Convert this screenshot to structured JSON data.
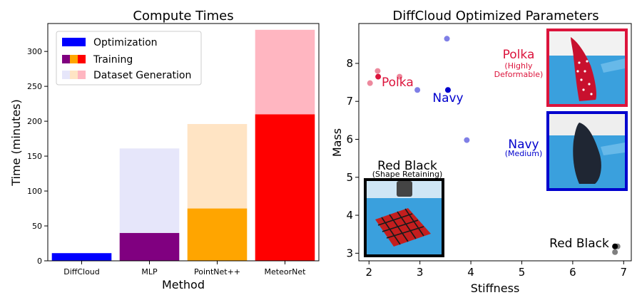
{
  "chart_data": [
    {
      "type": "bar",
      "stacked": true,
      "title": "Compute Times",
      "xlabel": "Method",
      "ylabel": "Time (minutes)",
      "ylim": [
        0,
        340
      ],
      "yticks": [
        0,
        50,
        100,
        150,
        200,
        250,
        300
      ],
      "categories": [
        "DiffCloud",
        "MLP",
        "PointNet++",
        "MeteorNet"
      ],
      "series": [
        {
          "name": "Optimization",
          "values": [
            11,
            0,
            0,
            0
          ],
          "colors": [
            "#0000ff",
            "#0000ff",
            "#0000ff",
            "#0000ff"
          ]
        },
        {
          "name": "Training",
          "values": [
            0,
            40,
            75,
            210
          ],
          "colors": [
            "#800080",
            "#800080",
            "#ffa500",
            "#ff0000"
          ]
        },
        {
          "name": "Dataset Generation",
          "values": [
            0,
            121,
            121,
            121
          ],
          "colors": [
            "#e6e6fa",
            "#e6e6fa",
            "#ffe4c4",
            "#ffb6c1"
          ]
        }
      ],
      "legend_position": "top-left",
      "grid": false
    },
    {
      "type": "scatter",
      "title": "DiffCloud Optimized Parameters",
      "xlabel": "Stiffness",
      "ylabel": "Mass",
      "xlim": [
        1.8,
        7.15
      ],
      "ylim": [
        2.8,
        9.05
      ],
      "xticks": [
        2,
        3,
        4,
        5,
        6,
        7
      ],
      "yticks": [
        3,
        4,
        5,
        6,
        7,
        8
      ],
      "grid": false,
      "series": [
        {
          "name": "Polka",
          "color": "#dc143c",
          "points": [
            [
              2.02,
              7.48
            ],
            [
              2.17,
              7.8
            ],
            [
              2.6,
              7.65
            ]
          ],
          "optimum": [
            2.18,
            7.65
          ]
        },
        {
          "name": "Navy",
          "color": "#0000cd",
          "points": [
            [
              2.95,
              7.3
            ],
            [
              3.53,
              8.65
            ],
            [
              3.92,
              5.98
            ]
          ],
          "optimum": [
            3.55,
            7.3
          ]
        },
        {
          "name": "Red Black",
          "color": "#000000",
          "points": [
            [
              6.83,
              3.03
            ],
            [
              6.88,
              3.18
            ]
          ],
          "optimum": [
            6.83,
            3.18
          ]
        }
      ],
      "annotations": {
        "polka_name": "Polka",
        "polka_desc_1": "(Highly",
        "polka_desc_2": "Deformable)",
        "navy_name": "Navy",
        "navy_desc": "(Medium)",
        "redblack_name": "Red Black",
        "redblack_desc": "(Shape Retaining)"
      }
    }
  ]
}
